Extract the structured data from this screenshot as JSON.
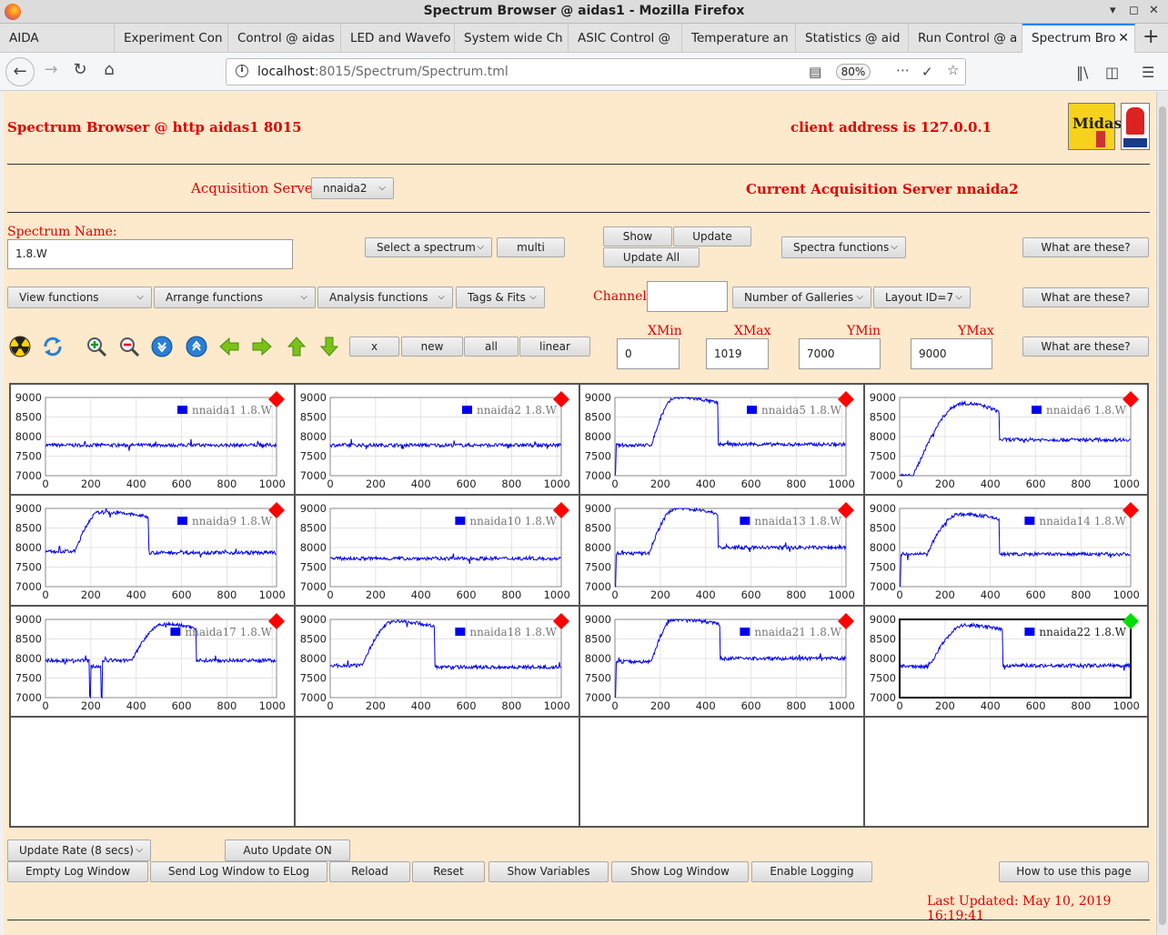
{
  "window_title": "Spectrum Browser @ aidas1 - Mozilla Firefox",
  "tabs": [
    {
      "label": "AIDA"
    },
    {
      "label": "Experiment Con"
    },
    {
      "label": "Control @ aidas"
    },
    {
      "label": "LED and Wavefo"
    },
    {
      "label": "System wide Ch"
    },
    {
      "label": "ASIC Control @"
    },
    {
      "label": "Temperature an"
    },
    {
      "label": "Statistics @ aid"
    },
    {
      "label": "Run Control @ a"
    },
    {
      "label": "Spectrum Bro",
      "active": true
    }
  ],
  "url": {
    "host": "localhost",
    "rest": ":8015/Spectrum/Spectrum.tml",
    "zoom": "80%"
  },
  "page": {
    "title": "Spectrum Browser @ http aidas1 8015",
    "client_address": "client address is 127.0.0.1",
    "acq_label": "Acquisition Servers",
    "acq_selected": "nnaida2",
    "current_server": "Current Acquisition Server nnaida2",
    "spectrum_name_label": "Spectrum Name:",
    "spectrum_name_value": "1.8.W",
    "select_spectrum": "Select a spectrum",
    "multi": "multi",
    "show": "Show",
    "update": "Update",
    "update_all": "Update All",
    "spectra_functions": "Spectra functions",
    "what_are_these": "What are these?",
    "view_functions": "View functions",
    "arrange_functions": "Arrange functions",
    "analysis_functions": "Analysis functions",
    "tags_fits": "Tags & Fits",
    "channel_label": "Channel:",
    "channel_value": "",
    "num_galleries": "Number of Galleries",
    "layout_id": "Layout ID=7",
    "x_btn": "x",
    "new_btn": "new",
    "all_btn": "all",
    "linear_btn": "linear",
    "xmin_label": "XMin",
    "xmax_label": "XMax",
    "ymin_label": "YMin",
    "ymax_label": "YMax",
    "xmin_value": "0",
    "xmax_value": "1019",
    "ymin_value": "7000",
    "ymax_value": "9000",
    "update_rate": "Update Rate (8 secs)",
    "auto_update": "Auto Update ON",
    "empty_log": "Empty Log Window",
    "send_log": "Send Log Window to ELog",
    "reload": "Reload",
    "reset": "Reset",
    "show_variables": "Show Variables",
    "show_log_window": "Show Log Window",
    "enable_logging": "Enable Logging",
    "how_to_use": "How to use this page",
    "last_updated": "Last Updated: May 10, 2019 16:19:41"
  },
  "icons": [
    "radiation-icon",
    "refresh-icon",
    "zoom-in-icon",
    "zoom-out-icon",
    "expand-down-icon",
    "expand-up-icon",
    "arrow-left-icon",
    "arrow-right-icon",
    "arrow-up-icon",
    "arrow-down-icon"
  ],
  "colors": {
    "background": "#fde9cc",
    "accent_red": "#e00000",
    "series_blue": "#0000ee",
    "status_red": "#ff0000",
    "status_green": "#00dd00"
  },
  "chart_data": {
    "type": "line",
    "xlim": [
      0,
      1019
    ],
    "ylim": [
      7000,
      9000
    ],
    "x_ticks": [
      0,
      200,
      400,
      600,
      800,
      1000
    ],
    "y_ticks": [
      7000,
      7500,
      8000,
      8500,
      9000
    ],
    "panels": [
      {
        "legend": "nnaida1 1.8.W",
        "status": "red",
        "shape": "flat",
        "base": 7780
      },
      {
        "legend": "nnaida2 1.8.W",
        "status": "red",
        "shape": "flat",
        "base": 7780
      },
      {
        "legend": "nnaida5 1.8.W",
        "status": "red",
        "shape": "hump",
        "base": 7780,
        "peak": 9000,
        "rise_start": 160,
        "rise_end": 270,
        "drop": 455,
        "tail": 7800,
        "start_zero": true
      },
      {
        "legend": "nnaida6 1.8.W",
        "status": "red",
        "shape": "hump",
        "base": 7000,
        "peak": 8850,
        "rise_start": 60,
        "rise_end": 280,
        "drop": 440,
        "tail": 7920
      },
      {
        "legend": "nnaida9 1.8.W",
        "status": "red",
        "shape": "hump",
        "base": 7900,
        "peak": 8900,
        "rise_start": 130,
        "rise_end": 240,
        "drop": 455,
        "tail": 7870
      },
      {
        "legend": "nnaida10 1.8.W",
        "status": "red",
        "shape": "flat",
        "base": 7720
      },
      {
        "legend": "nnaida13 1.8.W",
        "status": "red",
        "shape": "hump",
        "base": 7850,
        "peak": 9000,
        "rise_start": 150,
        "rise_end": 270,
        "drop": 455,
        "tail": 8000,
        "start_zero": true
      },
      {
        "legend": "nnaida14 1.8.W",
        "status": "red",
        "shape": "hump",
        "base": 7830,
        "peak": 8850,
        "rise_start": 120,
        "rise_end": 260,
        "drop": 440,
        "tail": 7830,
        "start_zero": true
      },
      {
        "legend": "nnaida17 1.8.W",
        "status": "red",
        "shape": "late",
        "base": 7950,
        "peak": 8880,
        "rise_start": 380,
        "rise_end": 520,
        "drop": 665,
        "tail": 7950
      },
      {
        "legend": "nnaida18 1.8.W",
        "status": "red",
        "shape": "hump",
        "base": 7820,
        "peak": 8950,
        "rise_start": 140,
        "rise_end": 280,
        "drop": 460,
        "tail": 7780
      },
      {
        "legend": "nnaida21 1.8.W",
        "status": "red",
        "shape": "hump",
        "base": 7920,
        "peak": 9000,
        "rise_start": 160,
        "rise_end": 260,
        "drop": 465,
        "tail": 8000,
        "start_zero": true
      },
      {
        "legend": "nnaida22 1.8.W",
        "status": "green",
        "shape": "hump",
        "base": 7800,
        "peak": 8850,
        "rise_start": 130,
        "rise_end": 290,
        "drop": 455,
        "tail": 7820,
        "selected": true
      }
    ]
  }
}
